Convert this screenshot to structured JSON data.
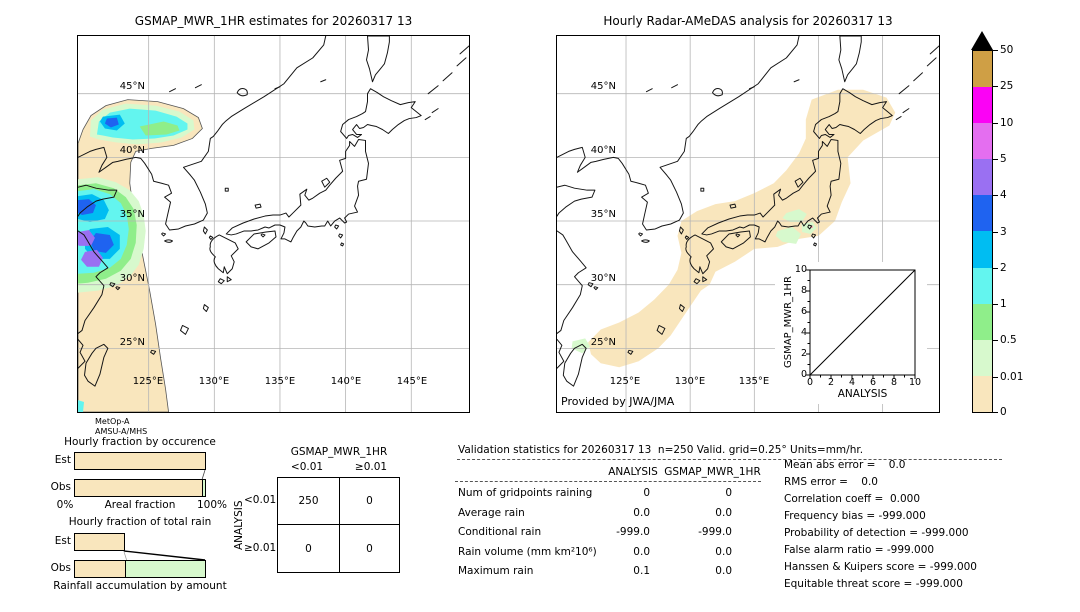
{
  "left_map": {
    "title": "GSMAP_MWR_1HR estimates for 20260317 13",
    "lat_labels": [
      "45°N",
      "40°N",
      "35°N",
      "30°N",
      "25°N"
    ],
    "lon_labels": [
      "125°E",
      "130°E",
      "135°E",
      "140°E",
      "145°E"
    ],
    "sensor": {
      "line1": "MetOp-A",
      "line2": "AMSU-A/MHS"
    }
  },
  "right_map": {
    "title": "Hourly Radar-AMeDAS analysis for 20260317 13",
    "lat_labels": [
      "45°N",
      "40°N",
      "35°N",
      "30°N",
      "25°N"
    ],
    "lon_labels": [
      "125°E",
      "130°E",
      "135°E"
    ],
    "credit": "Provided by JWA/JMA",
    "inset": {
      "ylabel": "GSMAP_MWR_1HR",
      "xlabel": "ANALYSIS",
      "x_ticks": [
        "0",
        "2",
        "4",
        "6",
        "8",
        "10"
      ],
      "y_ticks": [
        "10",
        "8",
        "6",
        "4",
        "2",
        "0"
      ]
    }
  },
  "colorbar": {
    "tick_labels": [
      "50",
      "25",
      "10",
      "5",
      "4",
      "3",
      "2",
      "1",
      "0.5",
      "0.01",
      "0"
    ],
    "segment_colors": [
      "#cf9f45",
      "#fb02f5",
      "#e46ef0",
      "#9a70f2",
      "#1f63f0",
      "#00bdf2",
      "#63f5ef",
      "#8fee8a",
      "#d7f9cd",
      "#f9e6bd"
    ],
    "overflow_marker_color": "#000000"
  },
  "map_extras": {
    "pink_spot": "#ff9fb2",
    "swath_edge": "#555555"
  },
  "occurrence_chart": {
    "title": "Hourly fraction by occurence",
    "row_labels": [
      "Est",
      "Obs"
    ],
    "x_min": "0%",
    "x_label": "Areal fraction",
    "x_max": "100%"
  },
  "totalrain_chart": {
    "title": "Hourly fraction of total rain",
    "row_labels": [
      "Est",
      "Obs"
    ],
    "caption": "Rainfall accumulation by amount"
  },
  "bars": {
    "occ_est_peach_pct": 100,
    "occ_obs_peach_pct": 97.8,
    "occ_obs_green_pct": 2.2,
    "tot_est_bar_pct": 38.5,
    "tot_obs_peach_pct": 38.5,
    "tot_obs_green_pct": 61.5
  },
  "contingency": {
    "header": "GSMAP_MWR_1HR",
    "col_labels": [
      "<0.01",
      "≥0.01"
    ],
    "row_axis_label": "ANALYSIS",
    "row_labels": [
      "<0.01",
      "≥0.01"
    ],
    "cells": [
      [
        "250",
        "0"
      ],
      [
        "0",
        "0"
      ]
    ]
  },
  "stats": {
    "title": "Validation statistics for 20260317 13  n=250 Valid. grid=0.25° Units=mm/hr.",
    "columns": [
      "ANALYSIS",
      "GSMAP_MWR_1HR"
    ],
    "rows": [
      {
        "label": "Num of gridpoints raining",
        "analysis": "0",
        "gsmap": "0"
      },
      {
        "label": "Average rain",
        "analysis": "0.0",
        "gsmap": "0.0"
      },
      {
        "label": "Conditional rain",
        "analysis": "-999.0",
        "gsmap": "-999.0"
      },
      {
        "label": "Rain volume (mm km²10⁶)",
        "analysis": "0.0",
        "gsmap": "0.0"
      },
      {
        "label": "Maximum rain",
        "analysis": "0.1",
        "gsmap": "0.0"
      }
    ],
    "scores": [
      "Mean abs error =    0.0",
      "RMS error =    0.0",
      "Correlation coeff =  0.000",
      "Frequency bias = -999.000",
      "Probability of detection = -999.000",
      "False alarm ratio = -999.000",
      "Hanssen & Kuipers score = -999.000",
      "Equitable threat score = -999.000"
    ]
  },
  "chart_data": [
    {
      "type": "heatmap",
      "title": "GSMAP_MWR_1HR estimates for 20260317 13",
      "x_ticks": [
        "125°E",
        "130°E",
        "135°E",
        "140°E",
        "145°E"
      ],
      "y_ticks": [
        "45°N",
        "40°N",
        "35°N",
        "30°N",
        "25°N"
      ],
      "levels_mm_hr": [
        0,
        0.01,
        0.5,
        1,
        2,
        3,
        4,
        5,
        10,
        25,
        50
      ],
      "annotations": [
        "MetOp-A",
        "AMSU-A/MHS"
      ],
      "description": "Satellite swath along ~120-124E/24-43N, mostly 0-0.01 mm/hr with rain cells of 0.5-10 mm/hr between 32-43N"
    },
    {
      "type": "heatmap",
      "title": "Hourly Radar-AMeDAS analysis for 20260317 13",
      "x_ticks": [
        "125°E",
        "130°E",
        "135°E"
      ],
      "y_ticks": [
        "45°N",
        "40°N",
        "35°N",
        "30°N",
        "25°N"
      ],
      "levels_mm_hr": [
        0,
        0.01,
        0.5,
        1,
        2,
        3,
        4,
        5,
        10,
        25,
        50
      ],
      "annotations": [
        "Provided by JWA/JMA"
      ],
      "description": "Radar coverage band over the Japanese archipelago and Ryukyu chain, mostly 0-0.01 mm/hr with small 0.01-0.5 patches near 33-36N, 137-140E"
    },
    {
      "type": "scatter",
      "title": "GSMAP_MWR_1HR vs ANALYSIS inset",
      "xlabel": "ANALYSIS",
      "ylabel": "GSMAP_MWR_1HR",
      "xlim": [
        0,
        10
      ],
      "ylim": [
        0,
        10
      ],
      "points": [],
      "diagonal_line": true
    },
    {
      "type": "bar",
      "title": "Hourly fraction by occurence",
      "orientation": "horizontal",
      "categories": [
        "Est",
        "Obs"
      ],
      "xlabel": "Areal fraction",
      "xlim_pct": [
        0,
        100
      ],
      "series": [
        {
          "name": "bin <0.01 mm/hr",
          "values_pct": [
            100,
            97.8
          ]
        },
        {
          "name": "bin 0.01-0.5 mm/hr",
          "values_pct": [
            0,
            2.2
          ]
        }
      ]
    },
    {
      "type": "bar",
      "title": "Hourly fraction of total rain",
      "orientation": "horizontal",
      "categories": [
        "Est",
        "Obs"
      ],
      "caption": "Rainfall accumulation by amount",
      "series": [
        {
          "name": "bin <0.01 mm/hr",
          "values_pct": [
            38.5,
            38.5
          ]
        },
        {
          "name": "bin 0.01-0.5 mm/hr",
          "values_pct": [
            0,
            61.5
          ]
        }
      ]
    },
    {
      "type": "table",
      "title": "GSMAP_MWR_1HR x ANALYSIS contingency",
      "columns": [
        "<0.01",
        "≥0.01"
      ],
      "rows": [
        "<0.01",
        "≥0.01"
      ],
      "values": [
        [
          250,
          0
        ],
        [
          0,
          0
        ]
      ]
    },
    {
      "type": "table",
      "title": "Validation statistics for 20260317 13 n=250 Valid. grid=0.25° Units=mm/hr.",
      "columns": [
        "ANALYSIS",
        "GSMAP_MWR_1HR"
      ],
      "values": [
        [
          "Num of gridpoints raining",
          0,
          0
        ],
        [
          "Average rain",
          0.0,
          0.0
        ],
        [
          "Conditional rain",
          -999.0,
          -999.0
        ],
        [
          "Rain volume (mm km²10⁶)",
          0.0,
          0.0
        ],
        [
          "Maximum rain",
          0.1,
          0.0
        ]
      ]
    },
    {
      "type": "table",
      "title": "Skill scores",
      "values": [
        [
          "Mean abs error",
          0.0
        ],
        [
          "RMS error",
          0.0
        ],
        [
          "Correlation coeff",
          0.0
        ],
        [
          "Frequency bias",
          -999.0
        ],
        [
          "Probability of detection",
          -999.0
        ],
        [
          "False alarm ratio",
          -999.0
        ],
        [
          "Hanssen & Kuipers score",
          -999.0
        ],
        [
          "Equitable threat score",
          -999.0
        ]
      ]
    }
  ]
}
